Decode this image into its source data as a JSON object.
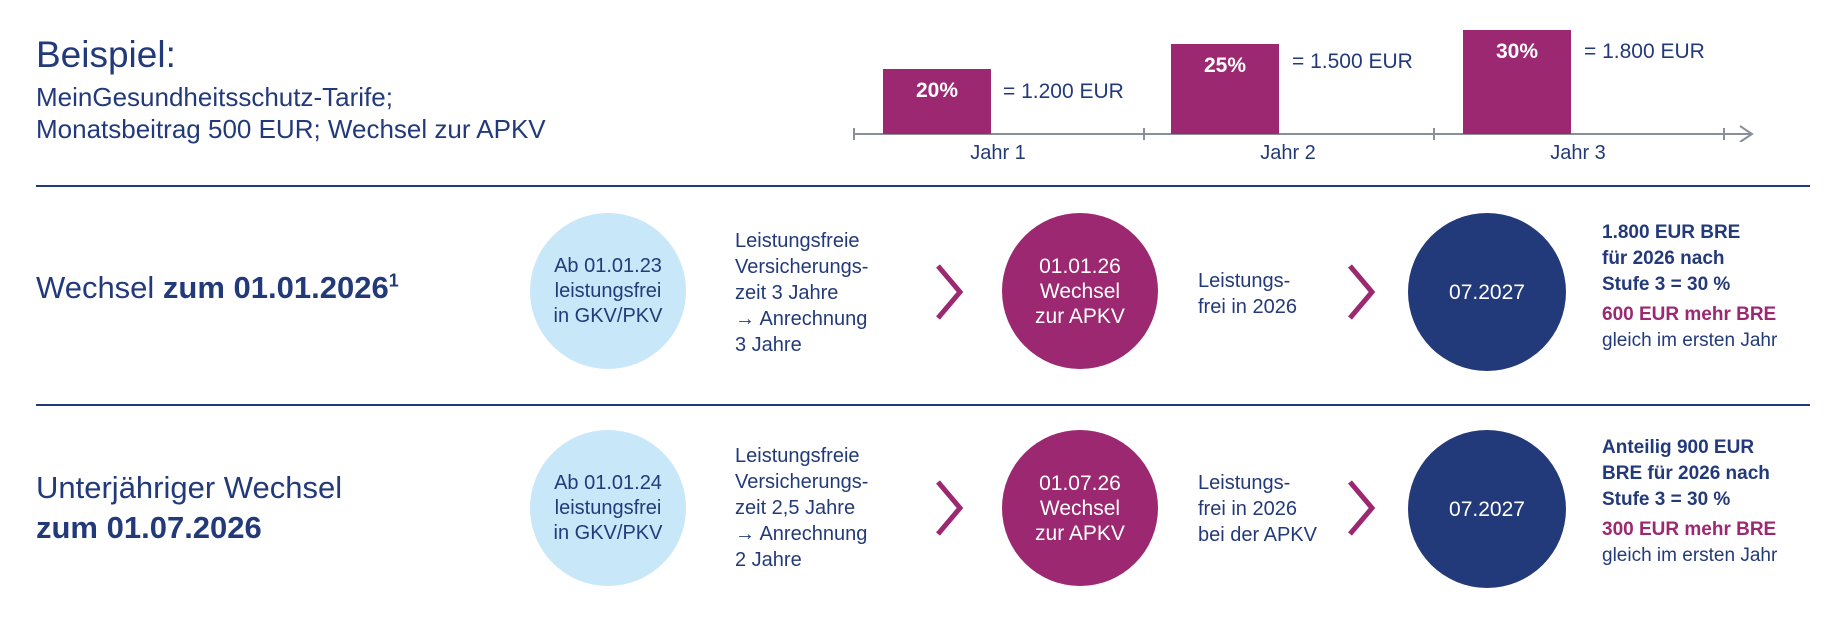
{
  "header": {
    "title": "Beispiel:",
    "subtitle_line1": "MeinGesundheitsschutz-Tarife;",
    "subtitle_line2": "Monatsbeitrag 500 EUR; Wechsel zur APKV"
  },
  "steps": [
    {
      "percent": "20%",
      "amount": "= 1.200 EUR",
      "year": "Jahr 1",
      "level": 20
    },
    {
      "percent": "25%",
      "amount": "= 1.500 EUR",
      "year": "Jahr 2",
      "level": 25
    },
    {
      "percent": "30%",
      "amount": "= 1.800 EUR",
      "year": "Jahr 3",
      "level": 30
    }
  ],
  "rows": [
    {
      "head_normal": "Wechsel ",
      "head_bold": "zum 01.01.2026",
      "head_sup": "1",
      "start_circle": "Ab 01.01.23\nleistungsfrei\nin GKV/PKV",
      "insurance_text": "Leistungsfreie\nVersicherungs-\nzeit 3 Jahre\n→ Anrechnung\n    3 Jahre",
      "switch_circle": "01.01.26\nWechsel\nzur APKV",
      "free_text": "Leistungs-\nfrei in 2026",
      "end_circle": "07.2027",
      "result_bold": "1.800 EUR BRE\nfür 2026 nach\nStufe 3 = 30 %",
      "result_highlight": "600 EUR mehr BRE",
      "result_normal": "gleich im ersten Jahr"
    },
    {
      "head_line1": "Unterjähriger Wechsel",
      "head_line2": "zum 01.07.2026",
      "start_circle": "Ab 01.01.24\nleistungsfrei\nin GKV/PKV",
      "insurance_text": "Leistungsfreie\nVersicherungs-\nzeit 2,5 Jahre\n→ Anrechnung\n    2 Jahre",
      "switch_circle": "01.07.26\nWechsel\nzur APKV",
      "free_text": "Leistungs-\nfrei in 2026\nbei der APKV",
      "end_circle": "07.2027",
      "result_bold": "Anteilig 900 EUR\nBRE für 2026 nach\nStufe 3 = 30 %",
      "result_highlight": "300 EUR mehr BRE",
      "result_normal": "gleich im ersten Jahr"
    }
  ],
  "colors": {
    "navy": "#233a7a",
    "magenta": "#9b2870",
    "light_blue": "#c8e7f9"
  }
}
